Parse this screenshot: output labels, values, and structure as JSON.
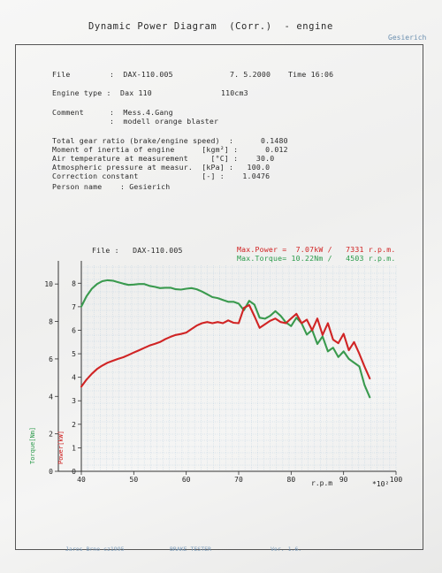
{
  "header": {
    "title": "Dynamic Power Diagram  (Corr.)  - engine",
    "operator": "Gesierich"
  },
  "info": {
    "file_label": "File",
    "file_value": ":  DAX-110.005",
    "date": "7. 5.2000",
    "time": "Time 16:06",
    "engine_label": "Engine type :",
    "engine_value": "Dax 110",
    "displacement": "110cm3",
    "comment_label": "Comment",
    "comment_line1": ":  Mess.4.Gang",
    "comment_line2": ":  modell orange blaster",
    "params": [
      "Total gear ratio (brake/engine speed)  :      0.1480",
      "Moment of inertia of engine      [kgm²] :      0.012",
      "Air temperature at measurement     [°C] :    30.0",
      "Atmospheric pressure at measur.  [kPa] :   100.0",
      "Correction constant              [-] :    1.0476",
      "Person name    : Gesierich"
    ]
  },
  "chart_data": {
    "type": "line",
    "file_caption": "File :   DAX-110.005",
    "max_power": "Max.Power =  7.07kW /   7331 r.p.m.",
    "max_torque": "Max.Torque= 10.22Nm /   4503 r.p.m.",
    "xlabel": "r.p.m",
    "x_multiplier": "*10²",
    "ylabel_torque": "Torque[Nm]",
    "ylabel_power": "Power[kW]",
    "xlim": [
      40,
      100
    ],
    "ylim_torque": [
      0,
      11
    ],
    "ylim_power": [
      0,
      8.5
    ],
    "x_ticks": [
      40,
      50,
      60,
      70,
      80,
      90,
      100
    ],
    "torque_ticks": [
      0,
      2,
      4,
      6,
      8,
      10
    ],
    "power_ticks": [
      0,
      1,
      2,
      3,
      4,
      5,
      6,
      7,
      8
    ],
    "series": [
      {
        "name": "Torque",
        "color": "#3a9a4e",
        "x": [
          40,
          41,
          42,
          43,
          44,
          45,
          46,
          47,
          48,
          49,
          50,
          51,
          52,
          53,
          54,
          55,
          56,
          57,
          58,
          59,
          60,
          61,
          62,
          63,
          64,
          65,
          66,
          67,
          68,
          69,
          70,
          71,
          72,
          73,
          74,
          75,
          76,
          77,
          78,
          79,
          80,
          81,
          82,
          83,
          84,
          85,
          86,
          87,
          88,
          89,
          90,
          91,
          92,
          93,
          94,
          95
        ],
        "values": [
          8.8,
          9.35,
          9.75,
          10.0,
          10.15,
          10.2,
          10.18,
          10.1,
          10.02,
          9.95,
          9.97,
          10.0,
          10.0,
          9.9,
          9.85,
          9.78,
          9.8,
          9.8,
          9.72,
          9.7,
          9.75,
          9.78,
          9.72,
          9.6,
          9.45,
          9.3,
          9.25,
          9.15,
          9.05,
          9.05,
          8.95,
          8.6,
          9.1,
          8.9,
          8.2,
          8.15,
          8.3,
          8.55,
          8.3,
          7.95,
          7.75,
          8.2,
          7.9,
          7.3,
          7.55,
          6.8,
          7.2,
          6.4,
          6.6,
          6.1,
          6.4,
          6.0,
          5.8,
          5.6,
          4.6,
          3.95
        ]
      },
      {
        "name": "Power",
        "color": "#d02424",
        "x": [
          40,
          41,
          42,
          43,
          44,
          45,
          46,
          47,
          48,
          49,
          50,
          51,
          52,
          53,
          54,
          55,
          56,
          57,
          58,
          59,
          60,
          61,
          62,
          63,
          64,
          65,
          66,
          67,
          68,
          69,
          70,
          71,
          72,
          73,
          74,
          75,
          76,
          77,
          78,
          79,
          80,
          81,
          82,
          83,
          84,
          85,
          86,
          87,
          88,
          89,
          90,
          91,
          92,
          93,
          94,
          95
        ],
        "values": [
          3.6,
          3.9,
          4.15,
          4.35,
          4.5,
          4.62,
          4.7,
          4.78,
          4.85,
          4.95,
          5.05,
          5.15,
          5.25,
          5.35,
          5.42,
          5.5,
          5.62,
          5.72,
          5.8,
          5.84,
          5.9,
          6.05,
          6.2,
          6.3,
          6.35,
          6.3,
          6.35,
          6.3,
          6.42,
          6.32,
          6.3,
          6.95,
          7.07,
          6.6,
          6.1,
          6.25,
          6.4,
          6.5,
          6.35,
          6.3,
          6.5,
          6.7,
          6.3,
          6.45,
          6.0,
          6.5,
          5.8,
          6.3,
          5.6,
          5.45,
          5.85,
          5.15,
          5.5,
          5.0,
          4.45,
          3.95
        ]
      }
    ]
  },
  "footer": {
    "left": "Jaros Brno cz1995",
    "middle": "BRAKE TESTER",
    "right": "Ver. 1.6."
  }
}
